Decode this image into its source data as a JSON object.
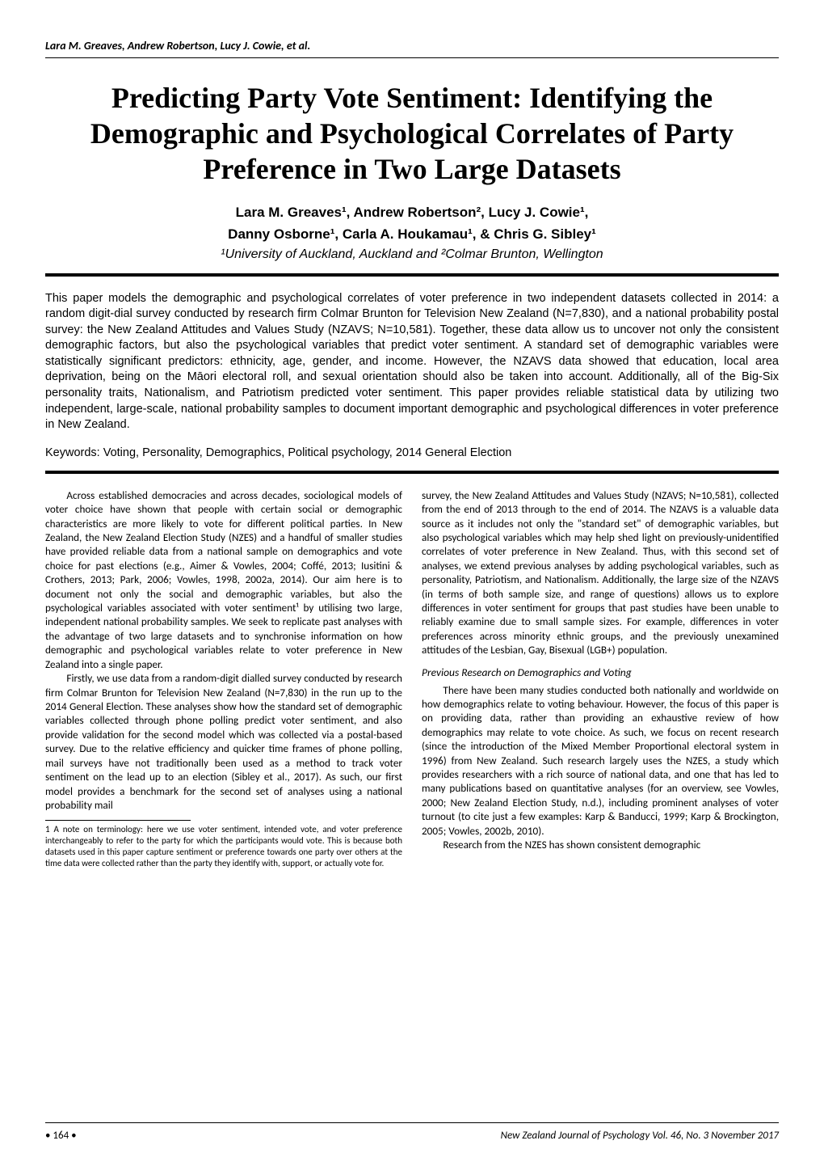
{
  "running_header": "Lara M. Greaves, Andrew Robertson, Lucy J. Cowie, et al.",
  "title": "Predicting Party Vote Sentiment: Identifying the Demographic and Psychological Correlates of Party Preference in Two Large Datasets",
  "authors_line1": "Lara M. Greaves¹, Andrew Robertson², Lucy J. Cowie¹,",
  "authors_line2": "Danny Osborne¹, Carla A. Houkamau¹, & Chris G. Sibley¹",
  "affiliation": "¹University of Auckland, Auckland and ²Colmar Brunton, Wellington",
  "abstract": "This paper models the demographic and psychological correlates of voter preference in two independent datasets collected in 2014: a random digit-dial survey conducted by research firm Colmar Brunton for Television New Zealand (N=7,830), and a national probability postal survey: the New Zealand Attitudes and Values Study (NZAVS; N=10,581). Together, these data allow us to uncover not only the consistent demographic factors, but also the psychological variables that predict voter sentiment. A standard set of demographic variables were statistically significant predictors: ethnicity, age, gender, and income. However, the NZAVS data showed that education, local area deprivation, being on the Māori electoral roll, and sexual orientation should also be taken into account. Additionally, all of the Big-Six personality traits, Nationalism, and Patriotism predicted voter sentiment. This paper provides reliable statistical data by utilizing two independent, large-scale, national probability samples to document important demographic and psychological differences in voter preference in New Zealand.",
  "keywords": "Keywords: Voting, Personality, Demographics, Political psychology, 2014 General Election",
  "para1": "Across established democracies and across decades, sociological models of voter choice have shown that people with certain social or demographic characteristics are more likely to vote for different political parties. In New Zealand, the New Zealand Election Study (NZES) and a handful of smaller studies have provided reliable data from a national sample on demographics and vote choice for past elections (e.g., Aimer & Vowles, 2004; Coffé, 2013; Iusitini & Crothers, 2013; Park, 2006; Vowles, 1998, 2002a, 2014). Our aim here is to document not only the social and demographic variables, but also the psychological variables associated with voter sentiment¹ by utilising two large, independent national probability samples. We seek to replicate past analyses with the advantage of two large datasets and to synchronise information on how demographic and psychological variables relate to voter preference in New Zealand into a single paper.",
  "para2": "Firstly, we use data from a random-digit dialled survey conducted by research firm Colmar Brunton for Television New Zealand (N=7,830) in the run up to the 2014 General Election. These analyses show how the standard set of demographic variables collected through phone polling predict voter sentiment, and also provide validation for the second model which was collected via a postal-based survey. Due to the relative efficiency and quicker time frames of phone polling, mail surveys have not traditionally been used as a method to track voter sentiment on the lead up to an election (Sibley et al., 2017).  As such, our first model provides a benchmark for the second set of analyses using a national probability mail",
  "footnote": "1 A note on terminology: here we use voter sentiment, intended vote, and voter preference interchangeably to refer to the party for which the participants would vote. This is because both datasets used in this paper capture sentiment or preference towards one party over others at the time data were collected rather than the party they identify with, support, or actually vote for.",
  "para3": "survey, the New Zealand Attitudes and Values Study (NZAVS; N=10,581), collected from the end of 2013 through to the end of 2014. The NZAVS is a valuable data  source as it includes not only the \"standard set\" of demographic variables, but also psychological variables which may help shed light on previously-unidentified correlates of voter preference in New Zealand. Thus, with this second set of analyses, we extend previous analyses by adding psychological variables, such as personality, Patriotism, and Nationalism. Additionally, the large size of the NZAVS (in terms of both sample size, and range of questions) allows us to explore differences in voter sentiment for groups that past studies have been unable to reliably examine due to small sample sizes. For example, differences in voter preferences across minority ethnic groups, and the previously unexamined attitudes of the Lesbian, Gay, Bisexual (LGB+) population.",
  "subhead": "Previous Research on Demographics and Voting",
  "para4": "There have been many studies conducted both nationally and worldwide on how demographics relate to voting behaviour. However, the focus of this paper is on providing data, rather than providing an exhaustive review of how demographics may relate to vote choice. As such, we focus on recent research (since the introduction of the Mixed Member Proportional electoral system in 1996) from New Zealand. Such research largely uses the NZES, a study which provides researchers with a rich source of national data, and one that has led to many publications based on quantitative analyses (for an overview, see Vowles, 2000; New Zealand Election Study, n.d.), including prominent analyses of voter turnout (to cite just a few examples: Karp & Banducci, 1999; Karp & Brockington, 2005; Vowles, 2002b, 2010).",
  "para5": "Research from the NZES has shown consistent demographic",
  "footer": {
    "page": "• 164 •",
    "journal": "New Zealand Journal of Psychology  Vol. 46,  No. 3  November 2017"
  }
}
